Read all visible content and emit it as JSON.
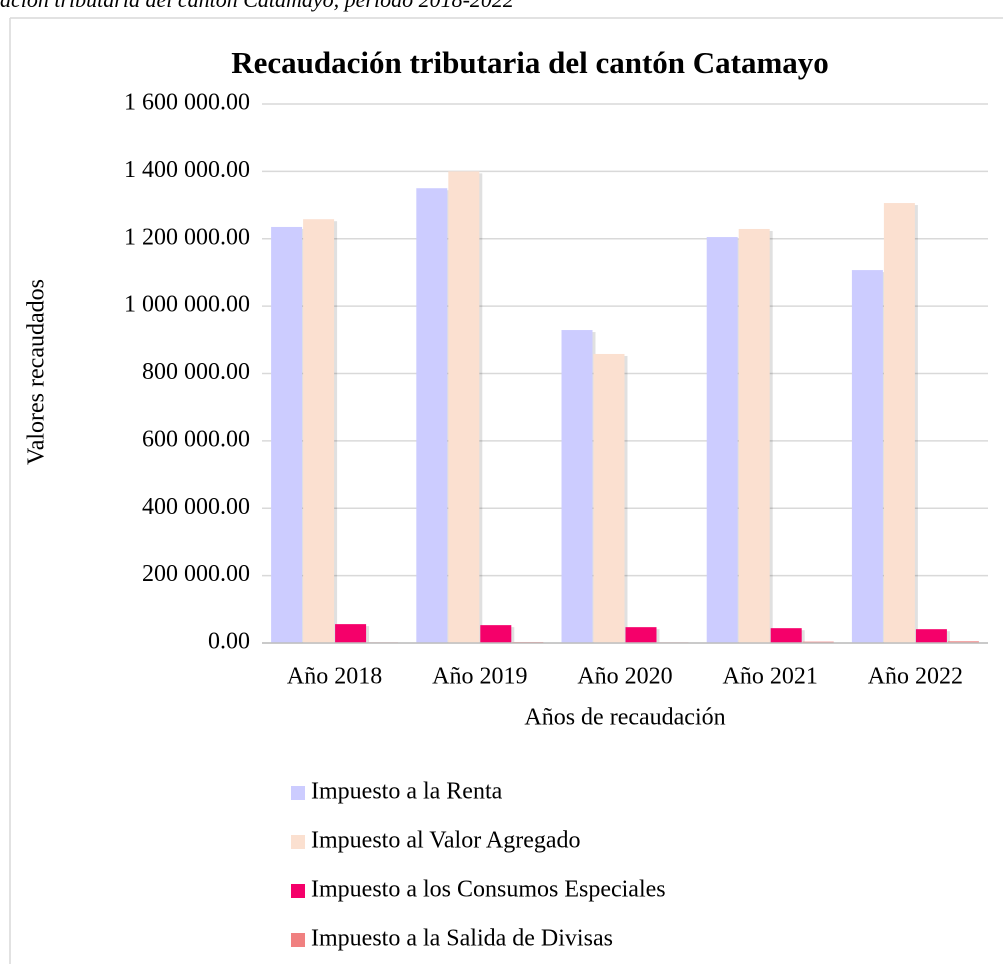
{
  "chart_data": {
    "type": "bar",
    "caption": "ación tributaria del cantón Catamayo, período 2018-2022",
    "title": "Recaudación tributaria del cantón Catamayo",
    "x_label": "Años de recaudación",
    "y_label": "Valores recaudados",
    "categories": [
      "Año 2018",
      "Año 2019",
      "Año 2020",
      "Año 2021",
      "Año 2022"
    ],
    "series": [
      {
        "name": "Impuesto a la Renta",
        "color": "#ccccff",
        "values": [
          1235000,
          1350000,
          929000,
          1205000,
          1107000
        ]
      },
      {
        "name": "Impuesto al Valor Agregado",
        "color": "#fbe0d0",
        "values": [
          1258000,
          1400000,
          858000,
          1229000,
          1306000
        ]
      },
      {
        "name": "Impuesto a los Consumos Especiales",
        "color": "#f5006a",
        "values": [
          56000,
          53000,
          47000,
          44000,
          41000
        ]
      },
      {
        "name": "Impuesto a la Salida de Divisas",
        "color": "#f08080",
        "values": [
          2000,
          3000,
          2000,
          4000,
          5000
        ]
      }
    ],
    "ylim": [
      0,
      1600000
    ],
    "yticks": [
      {
        "value": 0,
        "label": "0.00"
      },
      {
        "value": 200000,
        "label": "200 000.00"
      },
      {
        "value": 400000,
        "label": "400 000.00"
      },
      {
        "value": 600000,
        "label": "600 000.00"
      },
      {
        "value": 800000,
        "label": "800 000.00"
      },
      {
        "value": 1000000,
        "label": "1 000 000.00"
      },
      {
        "value": 1200000,
        "label": "1 200 000.00"
      },
      {
        "value": 1400000,
        "label": "1 400 000.00"
      },
      {
        "value": 1600000,
        "label": "1 600 000.00"
      }
    ],
    "grid": true,
    "legend": "bottom"
  }
}
